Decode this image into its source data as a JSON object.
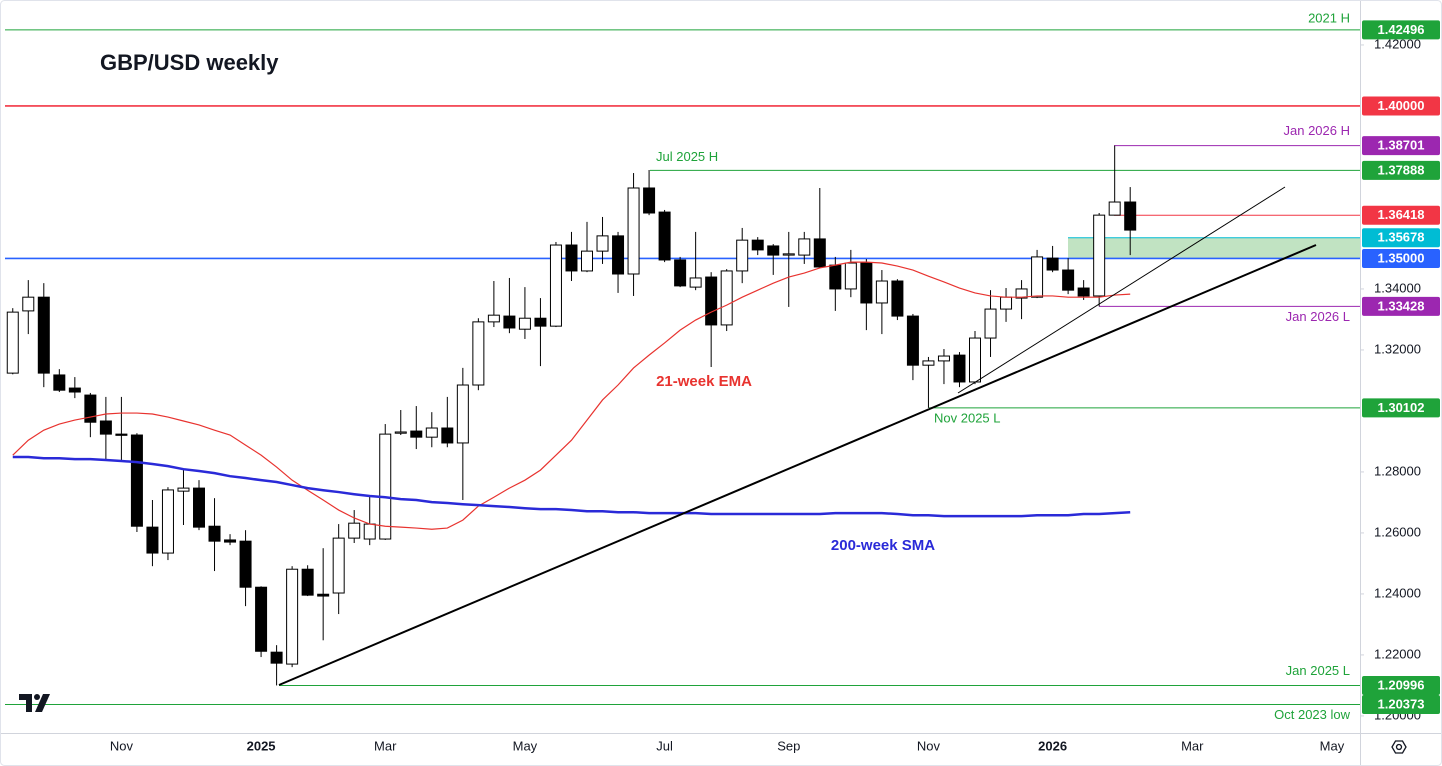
{
  "chart_data": {
    "type": "candlestick",
    "title": "GBP/USD weekly",
    "up_color": "#ffffff",
    "down_color": "#000000",
    "categories": [
      null,
      null,
      null,
      null,
      null,
      null,
      null,
      "Nov",
      null,
      null,
      null,
      null,
      null,
      null,
      null,
      null,
      "2025",
      null,
      null,
      null,
      null,
      null,
      null,
      null,
      "Mar",
      null,
      null,
      null,
      null,
      null,
      null,
      null,
      null,
      "May",
      null,
      null,
      null,
      null,
      null,
      null,
      null,
      null,
      "Jul",
      null,
      null,
      null,
      null,
      null,
      null,
      null,
      "Sep",
      null,
      null,
      null,
      null,
      null,
      null,
      null,
      null,
      "Nov",
      null,
      null,
      null,
      null,
      null,
      null,
      null,
      "2026",
      null,
      null,
      null,
      null,
      null,
      null,
      null,
      null,
      "Mar",
      null,
      null,
      null,
      null,
      null,
      null,
      null,
      null,
      "May",
      null
    ],
    "open": [
      1.3124,
      1.3328,
      1.3373,
      1.3118,
      1.3075,
      1.3052,
      1.2967,
      1.2924,
      1.2921,
      1.2619,
      1.2534,
      1.2737,
      1.2747,
      1.2622,
      1.2577,
      1.2573,
      1.2422,
      1.2209,
      1.217,
      1.2481,
      1.2399,
      1.2403,
      1.2583,
      1.258,
      1.258,
      1.2927,
      1.2934,
      1.2914,
      1.2944,
      1.2895,
      1.3085,
      1.3292,
      1.3311,
      1.3268,
      1.3304,
      1.3278,
      1.3544,
      1.3459,
      1.3524,
      1.3574,
      1.3449,
      1.3731,
      1.3652,
      1.3495,
      1.3406,
      1.3439,
      1.3282,
      1.3459,
      1.356,
      1.3541,
      1.3511,
      1.3511,
      1.3564,
      1.3478,
      1.34,
      1.3485,
      1.3354,
      1.3426,
      1.3311,
      1.315,
      1.3164,
      1.3183,
      1.3095,
      1.3239,
      1.3334,
      1.337,
      1.3373,
      1.3501,
      1.3462,
      1.3403,
      1.3377,
      1.3642,
      1.3685,
      null,
      null,
      null,
      null,
      null,
      null,
      null,
      null,
      null,
      null,
      null,
      null,
      null,
      null
    ],
    "high": [
      1.3337,
      1.3429,
      1.3419,
      1.3137,
      1.3111,
      1.3059,
      1.3046,
      1.3046,
      1.2927,
      1.2708,
      1.275,
      1.2806,
      1.2773,
      1.2714,
      1.2596,
      1.2609,
      1.2425,
      1.2232,
      1.2491,
      1.2494,
      1.255,
      1.2629,
      1.2675,
      1.2721,
      1.2957,
      1.3003,
      1.3016,
      1.2996,
      1.3046,
      1.3141,
      1.3304,
      1.3426,
      1.3436,
      1.3406,
      1.337,
      1.3554,
      1.3587,
      1.362,
      1.3636,
      1.3587,
      1.378,
      1.379,
      1.3659,
      1.3505,
      1.3587,
      1.3455,
      1.3465,
      1.36,
      1.357,
      1.3547,
      1.3587,
      1.3587,
      1.3731,
      1.3505,
      1.3528,
      1.3498,
      1.3462,
      1.3432,
      1.3318,
      1.3177,
      1.3203,
      1.3193,
      1.3262,
      1.3396,
      1.3403,
      1.3429,
      1.3528,
      1.3541,
      1.3501,
      1.3429,
      1.3649,
      1.387,
      1.3734,
      null,
      null,
      null,
      null,
      null,
      null,
      null,
      null,
      null,
      null,
      null,
      null,
      null,
      null
    ],
    "low": [
      1.312,
      1.3252,
      1.3078,
      1.3062,
      1.3042,
      1.2914,
      1.2842,
      1.2836,
      1.2603,
      1.2491,
      1.2511,
      1.2626,
      1.2609,
      1.2475,
      1.256,
      1.236,
      1.2193,
      1.21,
      1.216,
      1.2393,
      1.2248,
      1.2334,
      1.2567,
      1.256,
      1.2577,
      1.2921,
      1.2875,
      1.2881,
      1.2881,
      1.2708,
      1.3068,
      1.3275,
      1.3255,
      1.3236,
      1.3147,
      1.3275,
      1.3426,
      1.3455,
      1.3482,
      1.3387,
      1.3377,
      1.3642,
      1.3488,
      1.3406,
      1.3396,
      1.3144,
      1.3262,
      1.3419,
      1.3511,
      1.3446,
      1.3341,
      1.3482,
      1.3469,
      1.3328,
      1.3373,
      1.3265,
      1.3252,
      1.3298,
      1.3101,
      1.301,
      1.3088,
      1.3078,
      1.3088,
      1.3177,
      1.3292,
      1.3301,
      1.337,
      1.3455,
      1.3383,
      1.3364,
      1.3343,
      1.3642,
      1.3511,
      null,
      null,
      null,
      null,
      null,
      null,
      null,
      null,
      null,
      null,
      null,
      null,
      null,
      null
    ],
    "close": [
      1.3324,
      1.3373,
      1.3124,
      1.3068,
      1.3062,
      1.2963,
      1.2924,
      1.292,
      1.2622,
      1.2534,
      1.2741,
      1.2747,
      1.2619,
      1.2573,
      1.257,
      1.2422,
      1.2212,
      1.2173,
      1.2481,
      1.2396,
      1.2393,
      1.2583,
      1.2632,
      1.2629,
      1.2924,
      1.2931,
      1.2914,
      1.2944,
      1.2895,
      1.3085,
      1.3292,
      1.3314,
      1.3272,
      1.3304,
      1.3278,
      1.3544,
      1.3459,
      1.3524,
      1.3574,
      1.3449,
      1.3731,
      1.3649,
      1.3495,
      1.341,
      1.3436,
      1.3282,
      1.3459,
      1.356,
      1.3528,
      1.3511,
      1.3515,
      1.3564,
      1.3472,
      1.34,
      1.3485,
      1.3354,
      1.3426,
      1.3311,
      1.315,
      1.3164,
      1.318,
      1.3095,
      1.3239,
      1.3334,
      1.3373,
      1.34,
      1.3505,
      1.3462,
      1.3396,
      1.3377,
      1.3642,
      1.3685,
      1.3593,
      null,
      null,
      null,
      null,
      null,
      null,
      null,
      null,
      null,
      null,
      null,
      null,
      null,
      null
    ],
    "lines": [
      {
        "name": "21-week EMA",
        "color": "#e8332f",
        "values": [
          1.2855,
          1.2904,
          1.2937,
          1.2957,
          1.297,
          1.298,
          1.299,
          1.2993,
          1.2993,
          1.299,
          1.298,
          1.2967,
          1.2954,
          1.2937,
          1.2921,
          1.2888,
          1.2855,
          1.2816,
          1.2773,
          1.274,
          1.2708,
          1.2675,
          1.2649,
          1.2629,
          1.2622,
          1.2619,
          1.2616,
          1.2612,
          1.2616,
          1.2642,
          1.2688,
          1.2717,
          1.2747,
          1.2773,
          1.2806,
          1.2855,
          1.2904,
          1.297,
          1.3036,
          1.3085,
          1.3141,
          1.3183,
          1.3223,
          1.3265,
          1.3298,
          1.3324,
          1.3347,
          1.3373,
          1.3396,
          1.3419,
          1.3439,
          1.3452,
          1.3469,
          1.3478,
          1.3488,
          1.3488,
          1.3485,
          1.3475,
          1.3462,
          1.3442,
          1.3423,
          1.3403,
          1.3387,
          1.3377,
          1.3373,
          1.3373,
          1.3377,
          1.3377,
          1.3373,
          1.3373,
          1.3373,
          1.338,
          1.3383,
          null,
          null,
          null,
          null,
          null,
          null,
          null,
          null,
          null,
          null,
          null,
          null,
          null,
          null
        ]
      },
      {
        "name": "200-week SMA",
        "color": "#2a2ad8",
        "values": [
          1.2849,
          1.2849,
          1.2845,
          1.2845,
          1.2842,
          1.2842,
          1.2839,
          1.2836,
          1.2832,
          1.2826,
          1.2819,
          1.2809,
          1.2803,
          1.2796,
          1.2786,
          1.278,
          1.2773,
          1.2767,
          1.2757,
          1.2747,
          1.274,
          1.2734,
          1.2727,
          1.2721,
          1.2717,
          1.2711,
          1.2708,
          1.2701,
          1.2698,
          1.2694,
          1.2691,
          1.2688,
          1.2685,
          1.2681,
          1.2678,
          1.2678,
          1.2675,
          1.2671,
          1.2671,
          1.2668,
          1.2668,
          1.2665,
          1.2665,
          1.2665,
          1.2665,
          1.2662,
          1.2662,
          1.2662,
          1.2662,
          1.2662,
          1.2662,
          1.2662,
          1.2662,
          1.2665,
          1.2665,
          1.2665,
          1.2665,
          1.2662,
          1.2658,
          1.2658,
          1.2655,
          1.2655,
          1.2655,
          1.2655,
          1.2655,
          1.2655,
          1.2658,
          1.2658,
          1.2658,
          1.2662,
          1.2662,
          1.2665,
          1.2668,
          null,
          null,
          null,
          null,
          null,
          null,
          null,
          null,
          null,
          null,
          null,
          null,
          null,
          null
        ]
      }
    ],
    "levels": [
      {
        "value": 1.42496,
        "label": "1.42496",
        "name": "2021 H",
        "color": "#1fa33a"
      },
      {
        "value": 1.4,
        "label": "1.40000",
        "color": "#f23645"
      },
      {
        "value": 1.38701,
        "label": "1.38701",
        "name": "Jan 2026 H",
        "color": "#9c27b0"
      },
      {
        "value": 1.37888,
        "label": "1.37888",
        "name": "Jul 2025 H",
        "color": "#1fa33a"
      },
      {
        "value": 1.36418,
        "label": "1.36418",
        "color": "#f23645"
      },
      {
        "value": 1.35678,
        "label": "1.35678",
        "color": "#00bcd4"
      },
      {
        "value": 1.35,
        "label": "1.35000",
        "color": "#2962ff"
      },
      {
        "value": 1.33428,
        "label": "1.33428",
        "name": "Jan 2026 L",
        "color": "#9c27b0"
      },
      {
        "value": 1.30102,
        "label": "1.30102",
        "name": "Nov 2025 L",
        "color": "#1fa33a"
      },
      {
        "value": 1.20996,
        "label": "1.20996",
        "name": "Jan 2025 L",
        "color": "#1fa33a"
      },
      {
        "value": 1.20373,
        "label": "1.20373",
        "name": "Oct 2023 low",
        "color": "#1fa33a"
      }
    ],
    "ylim": [
      1.1944,
      1.4331
    ],
    "yticks": [
      {
        "value": 1.42,
        "label": "1.42000"
      },
      {
        "value": 1.34,
        "label": "1.34000"
      },
      {
        "value": 1.32,
        "label": "1.32000"
      },
      {
        "value": 1.28,
        "label": "1.28000"
      },
      {
        "value": 1.26,
        "label": "1.26000"
      },
      {
        "value": 1.24,
        "label": "1.24000"
      },
      {
        "value": 1.22,
        "label": "1.22000"
      },
      {
        "value": 1.2,
        "label": "1.20000"
      }
    ]
  }
}
